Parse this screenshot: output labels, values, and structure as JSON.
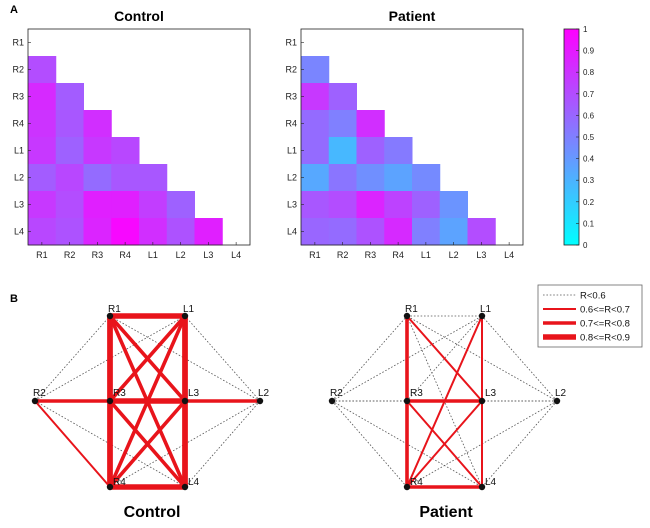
{
  "panels": {
    "a": "A",
    "b": "B"
  },
  "chart_data": [
    {
      "type": "heatmap",
      "title": "Control",
      "rows": [
        "R1",
        "R2",
        "R3",
        "R4",
        "L1",
        "L2",
        "L3",
        "L4"
      ],
      "cols": [
        "R1",
        "R2",
        "R3",
        "R4",
        "L1",
        "L2",
        "L3",
        "L4"
      ],
      "values": [
        [
          null,
          null,
          null,
          null,
          null,
          null,
          null,
          null
        ],
        [
          0.7,
          null,
          null,
          null,
          null,
          null,
          null,
          null
        ],
        [
          0.84,
          0.64,
          null,
          null,
          null,
          null,
          null,
          null
        ],
        [
          0.8,
          0.66,
          0.82,
          null,
          null,
          null,
          null,
          null
        ],
        [
          0.78,
          0.62,
          0.78,
          0.72,
          null,
          null,
          null,
          null
        ],
        [
          0.64,
          0.72,
          0.58,
          0.66,
          0.66,
          null,
          null,
          null
        ],
        [
          0.78,
          0.7,
          0.88,
          0.88,
          0.76,
          0.62,
          null,
          null
        ],
        [
          0.72,
          0.68,
          0.86,
          0.97,
          0.82,
          0.68,
          0.88,
          null
        ]
      ],
      "colorbar": {
        "min": 0,
        "max": 1,
        "colors": [
          "#00ffff",
          "#ff00ff"
        ]
      }
    },
    {
      "type": "heatmap",
      "title": "Patient",
      "rows": [
        "R1",
        "R2",
        "R3",
        "R4",
        "L1",
        "L2",
        "L3",
        "L4"
      ],
      "cols": [
        "R1",
        "R2",
        "R3",
        "R4",
        "L1",
        "L2",
        "L3",
        "L4"
      ],
      "values": [
        [
          null,
          null,
          null,
          null,
          null,
          null,
          null,
          null
        ],
        [
          0.48,
          null,
          null,
          null,
          null,
          null,
          null,
          null
        ],
        [
          0.78,
          0.62,
          null,
          null,
          null,
          null,
          null,
          null
        ],
        [
          0.58,
          0.5,
          0.82,
          null,
          null,
          null,
          null,
          null
        ],
        [
          0.58,
          0.28,
          0.62,
          0.52,
          null,
          null,
          null,
          null
        ],
        [
          0.34,
          0.54,
          0.44,
          0.36,
          0.46,
          null,
          null,
          null
        ],
        [
          0.66,
          0.7,
          0.86,
          0.74,
          0.62,
          0.42,
          null,
          null
        ],
        [
          0.6,
          0.58,
          0.68,
          0.84,
          0.5,
          0.36,
          0.7,
          null
        ]
      ],
      "colorbar": {
        "min": 0,
        "max": 1,
        "colors": [
          "#00ffff",
          "#ff00ff"
        ]
      }
    },
    {
      "type": "network",
      "title": "Control",
      "nodes": [
        "R1",
        "L1",
        "R2",
        "R3",
        "L3",
        "L2",
        "R4",
        "L4"
      ],
      "edges": [
        [
          "R1",
          "L1",
          4
        ],
        [
          "R1",
          "R3",
          4
        ],
        [
          "R1",
          "R4",
          4
        ],
        [
          "R1",
          "L3",
          3
        ],
        [
          "R1",
          "L4",
          3
        ],
        [
          "L1",
          "R3",
          3
        ],
        [
          "L1",
          "L3",
          4
        ],
        [
          "L1",
          "R4",
          3
        ],
        [
          "L1",
          "L4",
          4
        ],
        [
          "R3",
          "L3",
          4
        ],
        [
          "R3",
          "R4",
          4
        ],
        [
          "R3",
          "L4",
          3
        ],
        [
          "R4",
          "L3",
          3
        ],
        [
          "L3",
          "L4",
          4
        ],
        [
          "R4",
          "L4",
          4
        ],
        [
          "R2",
          "R3",
          3
        ],
        [
          "L3",
          "L2",
          3
        ],
        [
          "R2",
          "R4",
          2
        ],
        [
          "R2",
          "R1",
          1
        ],
        [
          "R2",
          "L1",
          1
        ],
        [
          "R2",
          "L4",
          1
        ],
        [
          "L2",
          "L1",
          1
        ],
        [
          "L2",
          "R1",
          1
        ],
        [
          "L2",
          "R4",
          1
        ],
        [
          "L2",
          "L4",
          1
        ],
        [
          "R2",
          "L3",
          1
        ],
        [
          "L2",
          "R3",
          1
        ]
      ]
    },
    {
      "type": "network",
      "title": "Patient",
      "nodes": [
        "R1",
        "L1",
        "R2",
        "R3",
        "L3",
        "L2",
        "R4",
        "L4"
      ],
      "edges": [
        [
          "R1",
          "R3",
          3
        ],
        [
          "R3",
          "R4",
          3
        ],
        [
          "R3",
          "L3",
          3
        ],
        [
          "R4",
          "L4",
          3
        ],
        [
          "L1",
          "L3",
          2
        ],
        [
          "L3",
          "L4",
          2
        ],
        [
          "R1",
          "L3",
          2
        ],
        [
          "R3",
          "L4",
          2
        ],
        [
          "R4",
          "L3",
          2
        ],
        [
          "L1",
          "R4",
          2
        ],
        [
          "R1",
          "L1",
          1
        ],
        [
          "R1",
          "L4",
          1
        ],
        [
          "L1",
          "R3",
          1
        ],
        [
          "R2",
          "R1",
          1
        ],
        [
          "R2",
          "R3",
          1
        ],
        [
          "R2",
          "R4",
          1
        ],
        [
          "R2",
          "L1",
          1
        ],
        [
          "R2",
          "L4",
          1
        ],
        [
          "R2",
          "L3",
          1
        ],
        [
          "L2",
          "L1",
          1
        ],
        [
          "L2",
          "R1",
          1
        ],
        [
          "L2",
          "L3",
          1
        ],
        [
          "L2",
          "R4",
          1
        ],
        [
          "L2",
          "L4",
          1
        ],
        [
          "L2",
          "R3",
          1
        ]
      ],
      "legend": [
        "R<0.6",
        "0.6<=R<0.7",
        "0.7<=R<0.8",
        "0.8<=R<0.9"
      ]
    }
  ]
}
